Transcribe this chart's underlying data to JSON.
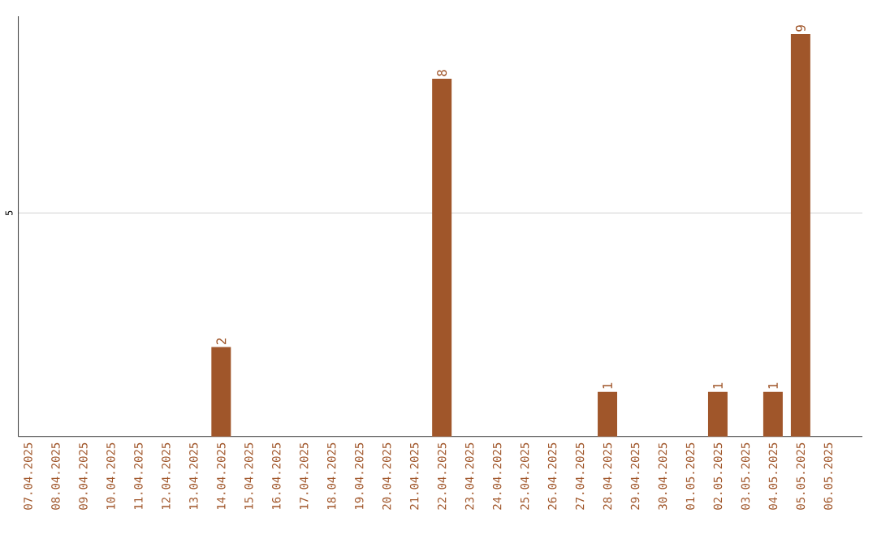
{
  "chart_data": {
    "type": "bar",
    "categories": [
      "07.04.2025",
      "08.04.2025",
      "09.04.2025",
      "10.04.2025",
      "11.04.2025",
      "12.04.2025",
      "13.04.2025",
      "14.04.2025",
      "15.04.2025",
      "16.04.2025",
      "17.04.2025",
      "18.04.2025",
      "19.04.2025",
      "20.04.2025",
      "21.04.2025",
      "22.04.2025",
      "23.04.2025",
      "24.04.2025",
      "25.04.2025",
      "26.04.2025",
      "27.04.2025",
      "28.04.2025",
      "29.04.2025",
      "30.04.2025",
      "01.05.2025",
      "02.05.2025",
      "03.05.2025",
      "04.05.2025",
      "05.05.2025",
      "06.05.2025"
    ],
    "values": [
      0,
      0,
      0,
      0,
      0,
      0,
      0,
      2,
      0,
      0,
      0,
      0,
      0,
      0,
      0,
      8,
      0,
      0,
      0,
      0,
      0,
      1,
      0,
      0,
      0,
      1,
      0,
      1,
      9,
      0
    ],
    "value_labels": [
      null,
      null,
      null,
      null,
      null,
      null,
      null,
      "2",
      null,
      null,
      null,
      null,
      null,
      null,
      null,
      "8",
      null,
      null,
      null,
      null,
      null,
      "1",
      null,
      null,
      null,
      "1",
      null,
      "1",
      "9",
      null
    ],
    "color": "#a0562a",
    "ylim": [
      0,
      9.4
    ],
    "yticks": [
      5
    ],
    "grid": "y"
  }
}
